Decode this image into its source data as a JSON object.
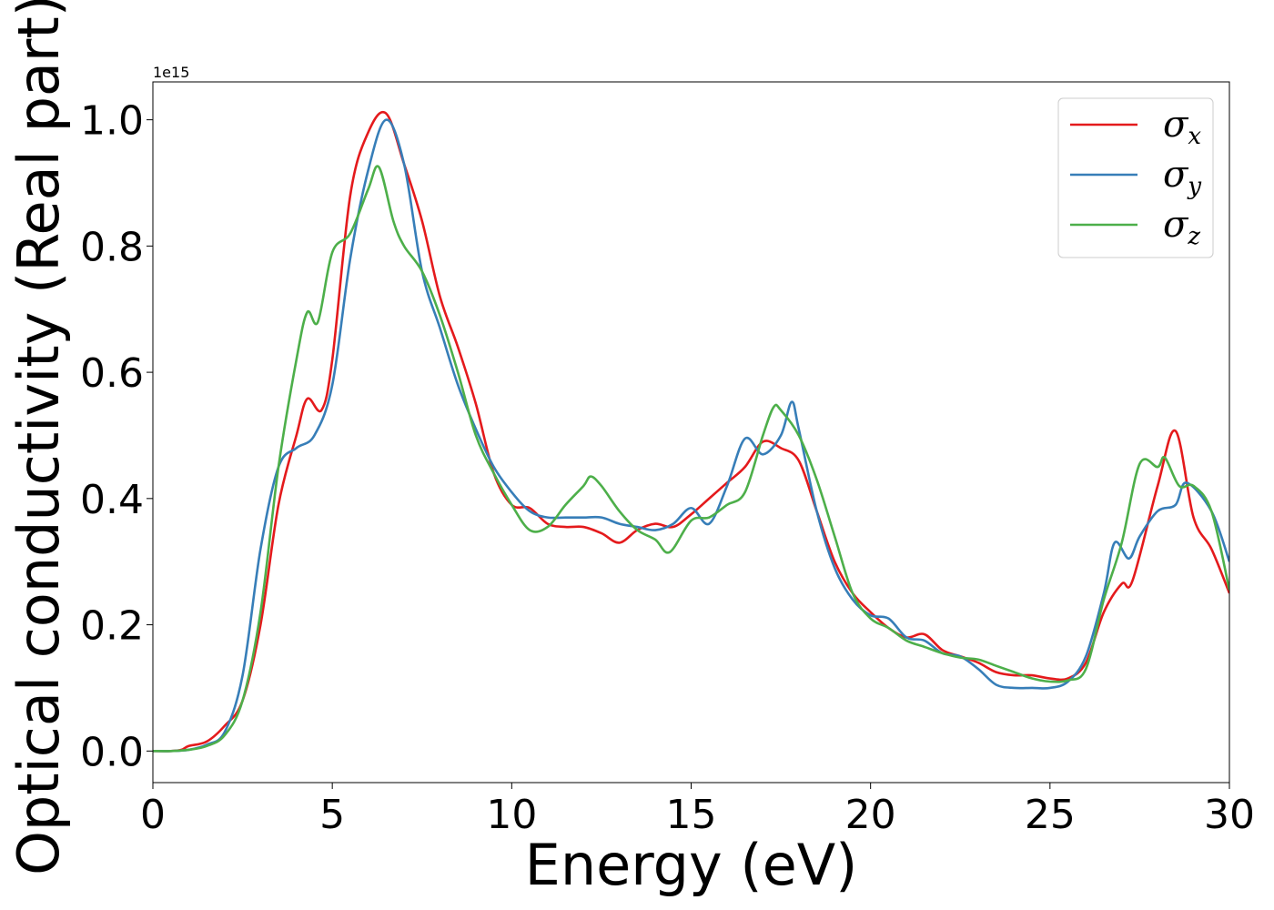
{
  "chart_data": {
    "type": "line",
    "title": "",
    "xlabel": "Energy (eV)",
    "ylabel": "Optical conductivity (Real part)",
    "y_offset_label": "1e15",
    "xlim": [
      0,
      30
    ],
    "ylim": [
      -0.05,
      1.06
    ],
    "xticks": [
      0,
      5,
      10,
      15,
      20,
      25,
      30
    ],
    "xtick_labels": [
      "0",
      "5",
      "10",
      "15",
      "20",
      "25",
      "30"
    ],
    "yticks": [
      0.0,
      0.2,
      0.4,
      0.6,
      0.8,
      1.0
    ],
    "ytick_labels": [
      "0.0",
      "0.2",
      "0.4",
      "0.6",
      "0.8",
      "1.0"
    ],
    "grid": false,
    "legend": "top-right",
    "series": [
      {
        "name": "σx",
        "symbol": "σ",
        "subscript": "x",
        "color": "#e41a1c",
        "points": [
          [
            0,
            0
          ],
          [
            0.5,
            0
          ],
          [
            0.8,
            0.002
          ],
          [
            1,
            0.008
          ],
          [
            1.5,
            0.015
          ],
          [
            2,
            0.04
          ],
          [
            2.5,
            0.08
          ],
          [
            3,
            0.2
          ],
          [
            3.5,
            0.39
          ],
          [
            4,
            0.5
          ],
          [
            4.3,
            0.558
          ],
          [
            4.7,
            0.54
          ],
          [
            5,
            0.62
          ],
          [
            5.5,
            0.88
          ],
          [
            6,
            0.98
          ],
          [
            6.5,
            1.01
          ],
          [
            7,
            0.93
          ],
          [
            7.5,
            0.84
          ],
          [
            8,
            0.72
          ],
          [
            8.5,
            0.64
          ],
          [
            9,
            0.55
          ],
          [
            9.5,
            0.44
          ],
          [
            10,
            0.39
          ],
          [
            10.5,
            0.385
          ],
          [
            11,
            0.36
          ],
          [
            11.5,
            0.355
          ],
          [
            12,
            0.355
          ],
          [
            12.5,
            0.345
          ],
          [
            13,
            0.33
          ],
          [
            13.5,
            0.35
          ],
          [
            14,
            0.36
          ],
          [
            14.5,
            0.355
          ],
          [
            15,
            0.375
          ],
          [
            15.5,
            0.4
          ],
          [
            16,
            0.425
          ],
          [
            16.5,
            0.45
          ],
          [
            17,
            0.49
          ],
          [
            17.5,
            0.48
          ],
          [
            18,
            0.46
          ],
          [
            18.5,
            0.38
          ],
          [
            19,
            0.3
          ],
          [
            19.5,
            0.25
          ],
          [
            20,
            0.22
          ],
          [
            20.5,
            0.195
          ],
          [
            21,
            0.18
          ],
          [
            21.5,
            0.185
          ],
          [
            22,
            0.16
          ],
          [
            22.5,
            0.15
          ],
          [
            23,
            0.14
          ],
          [
            23.5,
            0.125
          ],
          [
            24,
            0.12
          ],
          [
            24.5,
            0.12
          ],
          [
            25,
            0.115
          ],
          [
            25.5,
            0.115
          ],
          [
            26,
            0.14
          ],
          [
            26.5,
            0.22
          ],
          [
            27,
            0.265
          ],
          [
            27.3,
            0.27
          ],
          [
            28,
            0.42
          ],
          [
            28.5,
            0.507
          ],
          [
            29,
            0.37
          ],
          [
            29.5,
            0.32
          ],
          [
            30,
            0.25
          ]
        ]
      },
      {
        "name": "σy",
        "symbol": "σ",
        "subscript": "y",
        "color": "#377eb8",
        "points": [
          [
            0,
            0
          ],
          [
            0.5,
            0
          ],
          [
            1,
            0.002
          ],
          [
            1.5,
            0.01
          ],
          [
            2,
            0.03
          ],
          [
            2.5,
            0.12
          ],
          [
            3,
            0.32
          ],
          [
            3.5,
            0.45
          ],
          [
            4,
            0.48
          ],
          [
            4.5,
            0.5
          ],
          [
            5,
            0.58
          ],
          [
            5.5,
            0.78
          ],
          [
            6,
            0.92
          ],
          [
            6.5,
            1.0
          ],
          [
            7,
            0.93
          ],
          [
            7.5,
            0.76
          ],
          [
            8,
            0.67
          ],
          [
            8.5,
            0.58
          ],
          [
            9,
            0.51
          ],
          [
            9.5,
            0.45
          ],
          [
            10,
            0.41
          ],
          [
            10.5,
            0.38
          ],
          [
            11,
            0.37
          ],
          [
            11.5,
            0.37
          ],
          [
            12,
            0.37
          ],
          [
            12.5,
            0.37
          ],
          [
            13,
            0.36
          ],
          [
            13.5,
            0.355
          ],
          [
            14,
            0.35
          ],
          [
            14.5,
            0.36
          ],
          [
            15,
            0.385
          ],
          [
            15.5,
            0.36
          ],
          [
            16,
            0.42
          ],
          [
            16.5,
            0.495
          ],
          [
            17,
            0.47
          ],
          [
            17.5,
            0.5
          ],
          [
            17.8,
            0.553
          ],
          [
            18,
            0.51
          ],
          [
            18.5,
            0.38
          ],
          [
            19,
            0.29
          ],
          [
            19.5,
            0.24
          ],
          [
            20,
            0.215
          ],
          [
            20.5,
            0.21
          ],
          [
            21,
            0.18
          ],
          [
            21.5,
            0.175
          ],
          [
            22,
            0.155
          ],
          [
            22.5,
            0.15
          ],
          [
            23,
            0.13
          ],
          [
            23.5,
            0.105
          ],
          [
            24,
            0.1
          ],
          [
            24.5,
            0.1
          ],
          [
            25,
            0.1
          ],
          [
            25.5,
            0.11
          ],
          [
            26,
            0.15
          ],
          [
            26.5,
            0.25
          ],
          [
            26.8,
            0.33
          ],
          [
            27.2,
            0.305
          ],
          [
            27.5,
            0.34
          ],
          [
            28,
            0.38
          ],
          [
            28.5,
            0.39
          ],
          [
            28.8,
            0.425
          ],
          [
            29.5,
            0.38
          ],
          [
            30,
            0.3
          ]
        ]
      },
      {
        "name": "σz",
        "symbol": "σ",
        "subscript": "z",
        "color": "#4daf4a",
        "points": [
          [
            0,
            0
          ],
          [
            0.5,
            0
          ],
          [
            1,
            0.002
          ],
          [
            1.5,
            0.008
          ],
          [
            2,
            0.025
          ],
          [
            2.5,
            0.08
          ],
          [
            3,
            0.22
          ],
          [
            3.5,
            0.45
          ],
          [
            4,
            0.62
          ],
          [
            4.3,
            0.695
          ],
          [
            4.6,
            0.68
          ],
          [
            5,
            0.79
          ],
          [
            5.5,
            0.82
          ],
          [
            6,
            0.89
          ],
          [
            6.3,
            0.925
          ],
          [
            6.7,
            0.84
          ],
          [
            7,
            0.8
          ],
          [
            7.5,
            0.76
          ],
          [
            8,
            0.69
          ],
          [
            8.5,
            0.6
          ],
          [
            9,
            0.5
          ],
          [
            9.5,
            0.44
          ],
          [
            10,
            0.39
          ],
          [
            10.5,
            0.35
          ],
          [
            11,
            0.355
          ],
          [
            11.5,
            0.39
          ],
          [
            12,
            0.42
          ],
          [
            12.2,
            0.435
          ],
          [
            12.5,
            0.42
          ],
          [
            13,
            0.38
          ],
          [
            13.5,
            0.35
          ],
          [
            14,
            0.335
          ],
          [
            14.4,
            0.315
          ],
          [
            15,
            0.365
          ],
          [
            15.5,
            0.37
          ],
          [
            16,
            0.39
          ],
          [
            16.5,
            0.41
          ],
          [
            17,
            0.5
          ],
          [
            17.3,
            0.545
          ],
          [
            17.5,
            0.54
          ],
          [
            18,
            0.5
          ],
          [
            18.5,
            0.43
          ],
          [
            19,
            0.34
          ],
          [
            19.5,
            0.25
          ],
          [
            20,
            0.21
          ],
          [
            20.5,
            0.195
          ],
          [
            21,
            0.175
          ],
          [
            21.5,
            0.165
          ],
          [
            22,
            0.155
          ],
          [
            22.5,
            0.148
          ],
          [
            23,
            0.145
          ],
          [
            23.5,
            0.135
          ],
          [
            24,
            0.125
          ],
          [
            24.5,
            0.115
          ],
          [
            25,
            0.11
          ],
          [
            25.5,
            0.112
          ],
          [
            26,
            0.13
          ],
          [
            26.5,
            0.24
          ],
          [
            27,
            0.33
          ],
          [
            27.5,
            0.455
          ],
          [
            28,
            0.45
          ],
          [
            28.2,
            0.465
          ],
          [
            28.6,
            0.42
          ],
          [
            29,
            0.42
          ],
          [
            29.5,
            0.38
          ],
          [
            30,
            0.255
          ]
        ]
      }
    ]
  }
}
